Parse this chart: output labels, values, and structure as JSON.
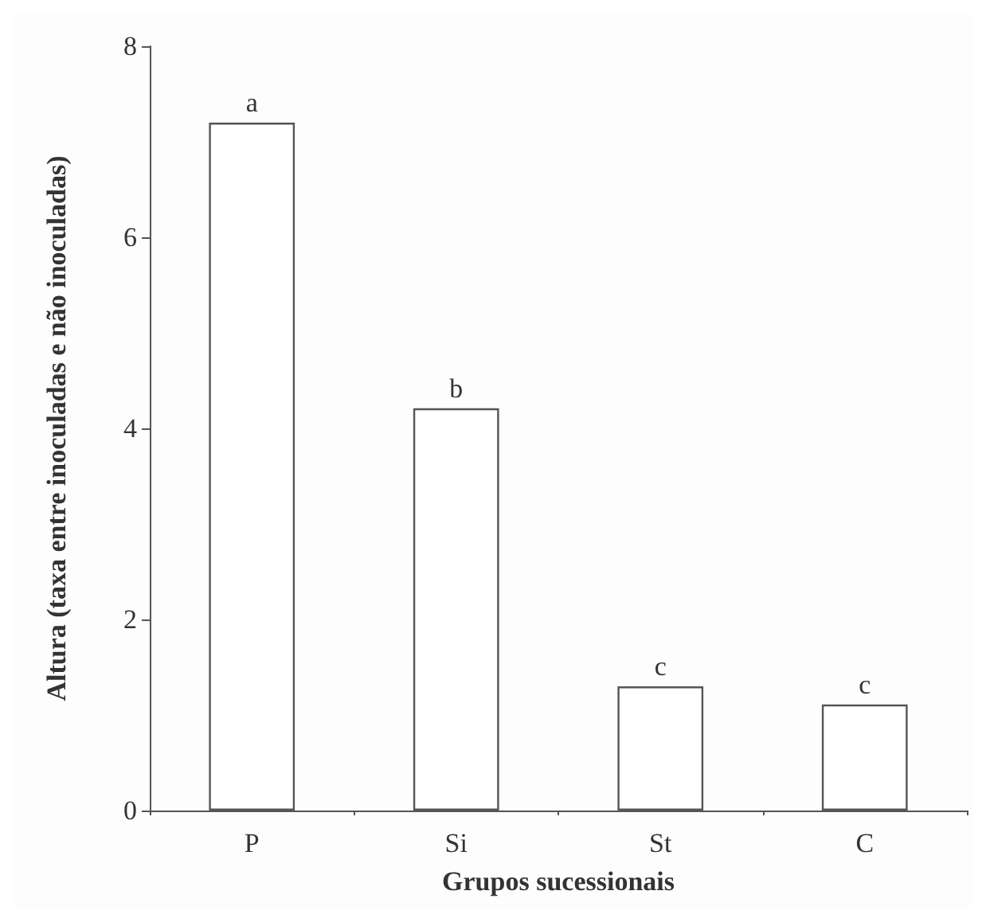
{
  "chart_data": {
    "type": "bar",
    "xlabel": "Grupos sucessionais",
    "ylabel": "Altura (taxa entre inoculadas e não inoculadas)",
    "categories": [
      "P",
      "Si",
      "St",
      "C"
    ],
    "values": [
      7.2,
      4.21,
      1.3,
      1.11
    ],
    "color": "#ffffff",
    "ylim": [
      0,
      8
    ],
    "yticks": [
      0,
      2,
      4,
      6,
      8
    ],
    "grid": false,
    "annotations": [
      {
        "text": "a",
        "x": "P",
        "y": 7.2
      },
      {
        "text": "b",
        "x": "Si",
        "y": 4.21
      },
      {
        "text": "c",
        "x": "St",
        "y": 1.3
      },
      {
        "text": "c",
        "x": "C",
        "y": 1.11
      }
    ]
  }
}
